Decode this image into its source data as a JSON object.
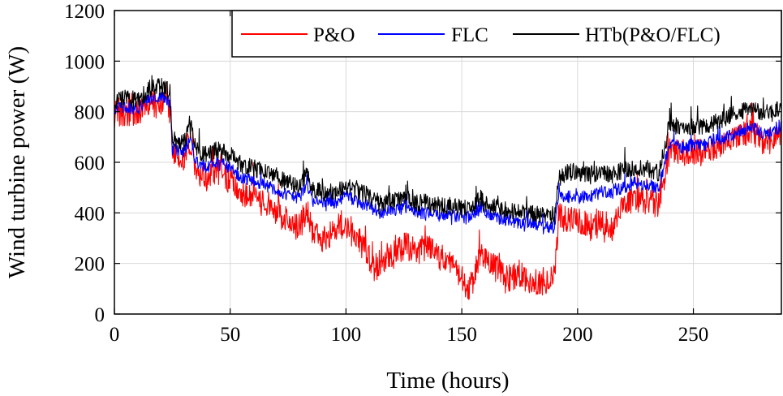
{
  "chart_data": {
    "type": "line",
    "title": "",
    "xlabel": "Time (hours)",
    "ylabel": "Wind turbine power (W)",
    "xlim": [
      0,
      288
    ],
    "ylim": [
      0,
      1200
    ],
    "xticks": [
      0,
      50,
      100,
      150,
      200,
      250
    ],
    "yticks": [
      0,
      200,
      400,
      600,
      800,
      1000,
      1200
    ],
    "grid": true,
    "legend_position": "top-right",
    "x": [
      0,
      5,
      10,
      15,
      20,
      24,
      25,
      30,
      33,
      35,
      40,
      45,
      50,
      55,
      60,
      65,
      70,
      75,
      80,
      83,
      85,
      90,
      95,
      100,
      105,
      110,
      112,
      115,
      120,
      125,
      130,
      135,
      140,
      145,
      150,
      152,
      155,
      158,
      160,
      165,
      170,
      175,
      180,
      185,
      190,
      192,
      195,
      200,
      205,
      210,
      215,
      220,
      225,
      230,
      235,
      240,
      245,
      250,
      255,
      260,
      265,
      270,
      275,
      280,
      285,
      288
    ],
    "series": [
      {
        "name": "P&O",
        "color": "#ff0000",
        "values": [
          790,
          800,
          790,
          830,
          840,
          820,
          630,
          620,
          680,
          560,
          540,
          560,
          530,
          480,
          450,
          440,
          410,
          360,
          340,
          420,
          340,
          300,
          330,
          360,
          300,
          220,
          160,
          210,
          230,
          270,
          250,
          260,
          230,
          200,
          150,
          80,
          140,
          250,
          210,
          180,
          140,
          160,
          120,
          130,
          150,
          400,
          370,
          380,
          340,
          360,
          340,
          430,
          460,
          440,
          430,
          660,
          640,
          640,
          640,
          660,
          680,
          700,
          720,
          680,
          700,
          720
        ]
      },
      {
        "name": "FLC",
        "color": "#0000ff",
        "values": [
          810,
          820,
          810,
          850,
          860,
          840,
          650,
          640,
          700,
          600,
          580,
          600,
          580,
          540,
          530,
          510,
          490,
          470,
          460,
          520,
          450,
          440,
          440,
          470,
          440,
          430,
          410,
          400,
          410,
          420,
          400,
          400,
          390,
          390,
          380,
          380,
          390,
          420,
          400,
          380,
          370,
          360,
          360,
          350,
          340,
          470,
          460,
          470,
          460,
          480,
          480,
          500,
          520,
          510,
          500,
          680,
          660,
          670,
          670,
          690,
          700,
          720,
          740,
          710,
          720,
          740
        ]
      },
      {
        "name": "HTb(P&O/FLC)",
        "color": "#000000",
        "values": [
          840,
          860,
          840,
          890,
          900,
          880,
          690,
          680,
          750,
          650,
          630,
          650,
          630,
          590,
          580,
          560,
          540,
          520,
          500,
          560,
          500,
          480,
          480,
          510,
          480,
          470,
          450,
          440,
          450,
          460,
          440,
          440,
          430,
          430,
          420,
          420,
          430,
          460,
          440,
          420,
          410,
          400,
          400,
          390,
          380,
          540,
          560,
          560,
          550,
          560,
          550,
          570,
          580,
          570,
          560,
          760,
          730,
          740,
          740,
          760,
          780,
          800,
          820,
          790,
          800,
          810
        ]
      }
    ]
  }
}
